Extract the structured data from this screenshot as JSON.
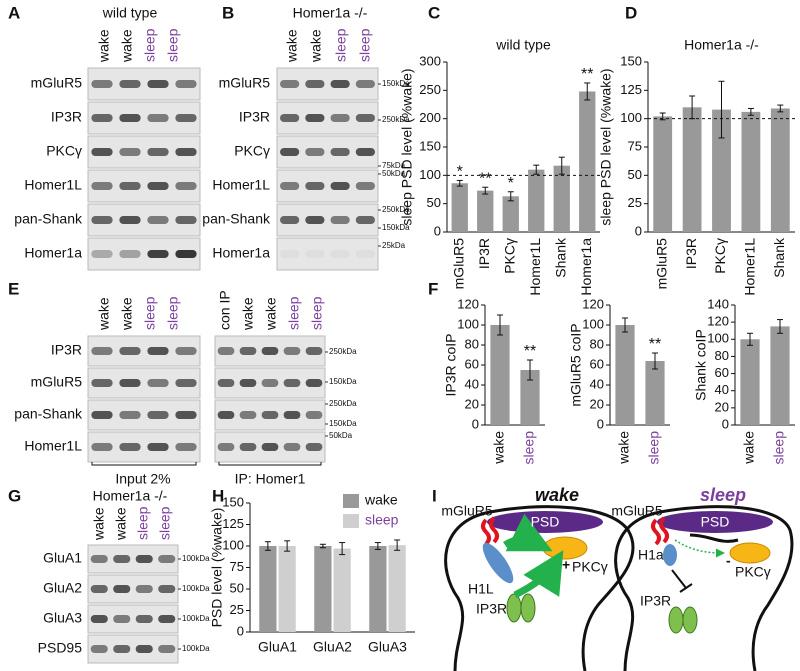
{
  "panel_labels": [
    "A",
    "B",
    "C",
    "D",
    "E",
    "F",
    "G",
    "H",
    "I"
  ],
  "blots": [
    {
      "title": "wild type",
      "lanes": [
        "wake",
        "wake",
        "sleep",
        "sleep"
      ],
      "lane_colors": [
        "#111111",
        "#111111",
        "#7b3f9e",
        "#7b3f9e"
      ],
      "rows": [
        "mGluR5",
        "IP3R",
        "PKCγ",
        "Homer1L",
        "pan-Shank",
        "Homer1a"
      ]
    },
    {
      "title": "Homer1a -/-",
      "lanes": [
        "wake",
        "wake",
        "sleep",
        "sleep"
      ],
      "lane_colors": [
        "#111111",
        "#111111",
        "#7b3f9e",
        "#7b3f9e"
      ],
      "rows": [
        "mGluR5",
        "IP3R",
        "PKCγ",
        "Homer1L",
        "pan-Shank",
        "Homer1a"
      ],
      "markers": [
        "150kDa",
        "250kDa",
        "75kDa",
        "50kDa",
        "250kDa",
        "150kDa",
        "25kDa"
      ]
    },
    {
      "lanes": [
        "wake",
        "wake",
        "sleep",
        "sleep"
      ],
      "lane_colors": [
        "#111111",
        "#111111",
        "#7b3f9e",
        "#7b3f9e"
      ],
      "rows": [
        "IP3R",
        "mGluR5",
        "pan-Shank",
        "Homer1L"
      ],
      "caption": "Input 2%"
    },
    {
      "lanes": [
        "con IP",
        "wake",
        "wake",
        "sleep",
        "sleep"
      ],
      "lane_colors": [
        "#111111",
        "#111111",
        "#111111",
        "#7b3f9e",
        "#7b3f9e"
      ],
      "markers": [
        "250kDa",
        "150kDa",
        "250kDa",
        "150kDa",
        "50kDa"
      ],
      "caption": "IP: Homer1"
    },
    {
      "title": "Homer1a -/-",
      "lanes": [
        "wake",
        "wake",
        "sleep",
        "sleep"
      ],
      "lane_colors": [
        "#111111",
        "#111111",
        "#7b3f9e",
        "#7b3f9e"
      ],
      "rows": [
        "GluA1",
        "GluA2",
        "GluA3",
        "PSD95"
      ],
      "markers": [
        "100kDa",
        "100kDa",
        "100kDa",
        "100kDa"
      ]
    }
  ],
  "chart_data": [
    {
      "type": "bar",
      "title": "wild type",
      "y_label": "sleep PSD level (%wake)",
      "categories": [
        "mGluR5",
        "IP3R",
        "PKCγ",
        "Homer1L",
        "Shank",
        "Homer1a"
      ],
      "values": [
        86,
        73,
        63,
        110,
        117,
        248
      ],
      "errors": [
        5,
        6,
        8,
        8,
        15,
        15
      ],
      "significance": [
        "*",
        "**",
        "*",
        null,
        null,
        "**"
      ],
      "color": "#999999",
      "ylim": [
        0,
        300
      ],
      "yticks": [
        0,
        50,
        100,
        150,
        200,
        250,
        300
      ],
      "reference_line": 100
    },
    {
      "type": "bar",
      "title": "Homer1a -/-",
      "y_label": "sleep PSD level (%wake)",
      "categories": [
        "mGluR5",
        "IP3R",
        "PKCγ",
        "Homer1L",
        "Shank"
      ],
      "values": [
        102,
        110,
        108,
        106,
        109
      ],
      "errors": [
        3,
        10,
        25,
        3,
        3
      ],
      "color": "#999999",
      "ylim": [
        0,
        150
      ],
      "yticks": [
        0,
        25,
        50,
        75,
        100,
        125,
        150
      ],
      "reference_line": 100
    },
    {
      "type": "bar",
      "y_label": "IP3R coIP",
      "categories": [
        "wake",
        "sleep"
      ],
      "category_colors": [
        "#111111",
        "#7b3f9e"
      ],
      "values": [
        100,
        55
      ],
      "errors": [
        10,
        10
      ],
      "significance": [
        null,
        "**"
      ],
      "color": "#999999",
      "ylim": [
        0,
        120
      ],
      "yticks": [
        0,
        20,
        40,
        60,
        80,
        100,
        120
      ]
    },
    {
      "type": "bar",
      "y_label": "mGluR5 coIP",
      "categories": [
        "wake",
        "sleep"
      ],
      "category_colors": [
        "#111111",
        "#7b3f9e"
      ],
      "values": [
        100,
        64
      ],
      "errors": [
        7,
        8
      ],
      "significance": [
        null,
        "**"
      ],
      "color": "#999999",
      "ylim": [
        0,
        120
      ],
      "yticks": [
        0,
        20,
        40,
        60,
        80,
        100,
        120
      ]
    },
    {
      "type": "bar",
      "y_label": "Shank coIP",
      "categories": [
        "wake",
        "sleep"
      ],
      "category_colors": [
        "#111111",
        "#7b3f9e"
      ],
      "values": [
        100,
        115
      ],
      "errors": [
        7,
        8
      ],
      "color": "#999999",
      "ylim": [
        0,
        140
      ],
      "yticks": [
        0,
        20,
        40,
        60,
        80,
        100,
        120,
        140
      ]
    },
    {
      "type": "grouped_bar",
      "y_label": "PSD level (%wake)",
      "categories": [
        "GluA1",
        "GluA2",
        "GluA3"
      ],
      "series": [
        {
          "name": "wake",
          "color": "#999999",
          "name_color": "#111111",
          "values": [
            100,
            100,
            100
          ],
          "errors": [
            5,
            2,
            4
          ]
        },
        {
          "name": "sleep",
          "color": "#cfcfcf",
          "name_color": "#7b3f9e",
          "values": [
            100,
            97,
            101
          ],
          "errors": [
            6,
            7,
            6
          ]
        }
      ],
      "ylim": [
        0,
        150
      ],
      "yticks": [
        0,
        25,
        50,
        75,
        100,
        125,
        150
      ],
      "legend": "top-right"
    }
  ],
  "diagram": {
    "wake": {
      "title": "wake",
      "receptor": "mGluR5",
      "psd": "PSD",
      "homer": "H1L",
      "kinase": "PKCγ",
      "channel": "IP3R",
      "effect": "+"
    },
    "sleep": {
      "title": "sleep",
      "receptor": "mGluR5",
      "psd": "PSD",
      "homer": "H1a",
      "kinase": "PKCγ",
      "channel": "IP3R",
      "effect": "-"
    }
  }
}
